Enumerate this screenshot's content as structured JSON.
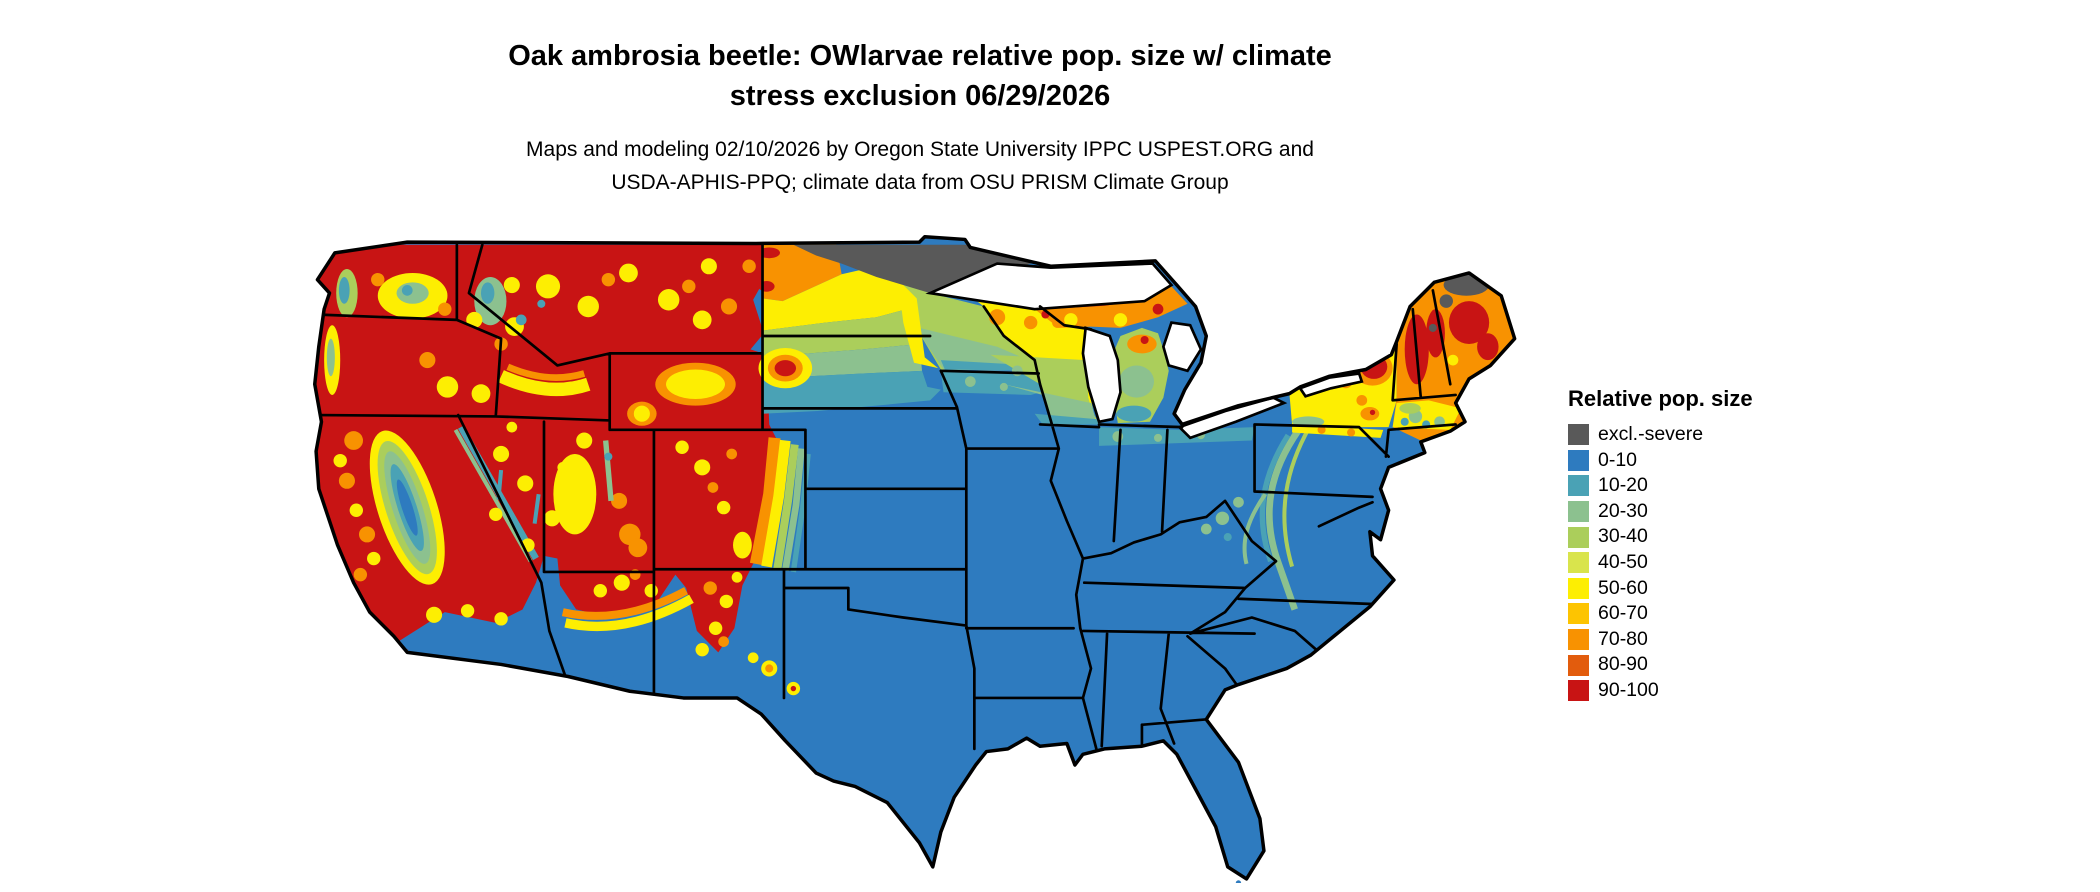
{
  "title": {
    "line1": "Oak ambrosia beetle: OWlarvae relative pop. size w/ climate",
    "line2": "stress exclusion 06/29/2026"
  },
  "subtitle": {
    "line1": "Maps and modeling 02/10/2026 by Oregon State University IPPC USPEST.ORG and",
    "line2": "USDA-APHIS-PPQ; climate data from OSU PRISM Climate Group"
  },
  "legend": {
    "title": "Relative pop. size",
    "items": [
      {
        "label": "excl.-severe",
        "color": "#595959",
        "key": "cexcl"
      },
      {
        "label": "0-10",
        "color": "#2e7bbf",
        "key": "c010"
      },
      {
        "label": "10-20",
        "color": "#4aa2b5",
        "key": "c1020"
      },
      {
        "label": "20-30",
        "color": "#8cc18f",
        "key": "c2030"
      },
      {
        "label": "30-40",
        "color": "#abce5b",
        "key": "c3040"
      },
      {
        "label": "40-50",
        "color": "#d9e44c",
        "key": "c4050"
      },
      {
        "label": "50-60",
        "color": "#fdee02",
        "key": "c5060"
      },
      {
        "label": "60-70",
        "color": "#fdc401",
        "key": "c6070"
      },
      {
        "label": "70-80",
        "color": "#f89201",
        "key": "c7080"
      },
      {
        "label": "80-90",
        "color": "#e25c0d",
        "key": "c8090"
      },
      {
        "label": "90-100",
        "color": "#c81414",
        "key": "c90100"
      }
    ]
  }
}
